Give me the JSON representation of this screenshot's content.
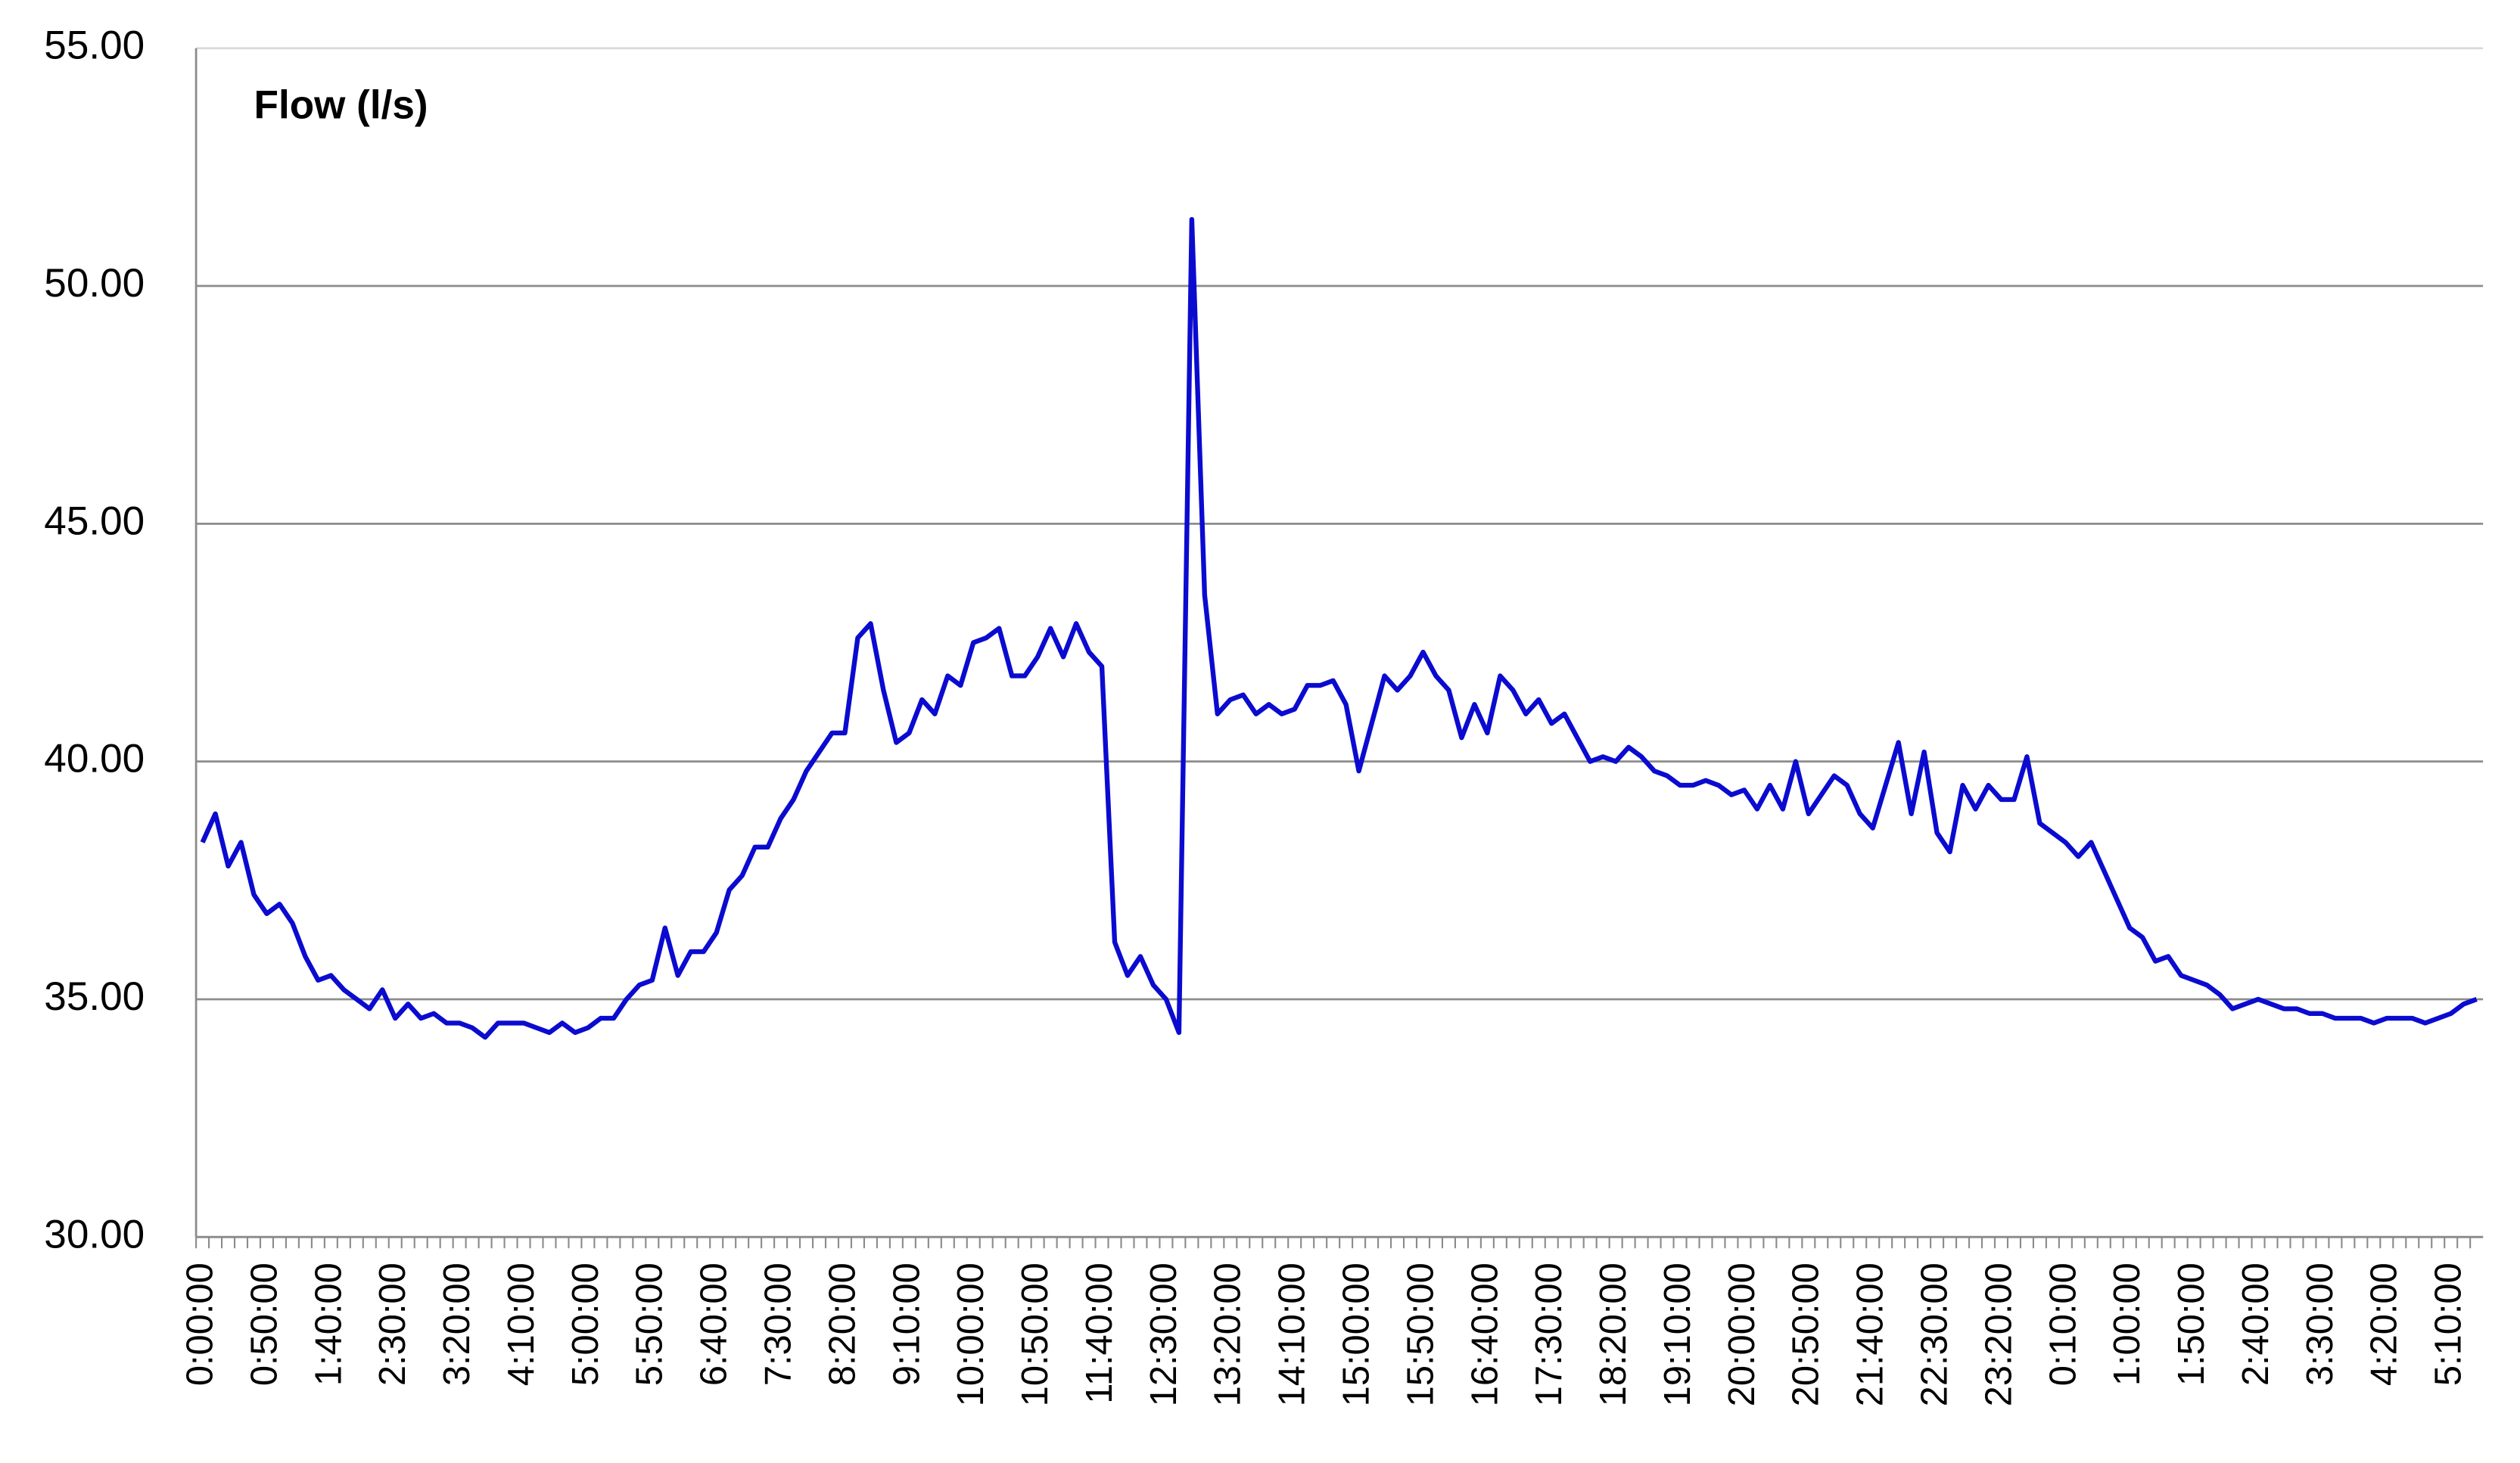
{
  "chart_data": {
    "type": "line",
    "categories": [
      "0:00:00",
      null,
      null,
      null,
      null,
      "0:50:00",
      null,
      null,
      null,
      null,
      "1:40:00",
      null,
      null,
      null,
      null,
      "2:30:00",
      null,
      null,
      null,
      null,
      "3:20:00",
      null,
      null,
      null,
      null,
      "4:10:00",
      null,
      null,
      null,
      null,
      "5:00:00",
      null,
      null,
      null,
      null,
      "5:50:00",
      null,
      null,
      null,
      null,
      "6:40:00",
      null,
      null,
      null,
      null,
      "7:30:00",
      null,
      null,
      null,
      null,
      "8:20:00",
      null,
      null,
      null,
      null,
      "9:10:00",
      null,
      null,
      null,
      null,
      "10:00:00",
      null,
      null,
      null,
      null,
      "10:50:00",
      null,
      null,
      null,
      null,
      "11:40:00",
      null,
      null,
      null,
      null,
      "12:30:00",
      null,
      null,
      null,
      null,
      "13:20:00",
      null,
      null,
      null,
      null,
      "14:10:00",
      null,
      null,
      null,
      null,
      "15:00:00",
      null,
      null,
      null,
      null,
      "15:50:00",
      null,
      null,
      null,
      null,
      "16:40:00",
      null,
      null,
      null,
      null,
      "17:30:00",
      null,
      null,
      null,
      null,
      "18:20:00",
      null,
      null,
      null,
      null,
      "19:10:00",
      null,
      null,
      null,
      null,
      "20:00:00",
      null,
      null,
      null,
      null,
      "20:50:00",
      null,
      null,
      null,
      null,
      "21:40:00",
      null,
      null,
      null,
      null,
      "22:30:00",
      null,
      null,
      null,
      null,
      "23:20:00",
      null,
      null,
      null,
      null,
      "0:10:00",
      null,
      null,
      null,
      null,
      "1:00:00",
      null,
      null,
      null,
      null,
      "1:50:00",
      null,
      null,
      null,
      null,
      "2:40:00",
      null,
      null,
      null,
      null,
      "3:30:00",
      null,
      null,
      null,
      null,
      "4:20:00",
      null,
      null,
      null,
      null,
      "5:10:00",
      null,
      null
    ],
    "series": [
      {
        "name": "Flow (l/s)",
        "color": "#0b0bd0",
        "values": [
          38.3,
          38.9,
          37.8,
          38.3,
          37.2,
          36.8,
          37.0,
          36.6,
          35.9,
          35.4,
          35.5,
          35.2,
          35.0,
          34.8,
          35.2,
          34.6,
          34.9,
          34.6,
          34.7,
          34.5,
          34.5,
          34.4,
          34.2,
          34.5,
          34.5,
          34.5,
          34.4,
          34.3,
          34.5,
          34.3,
          34.4,
          34.6,
          34.6,
          35.0,
          35.3,
          35.4,
          36.5,
          35.5,
          36.0,
          36.0,
          36.4,
          37.3,
          37.6,
          38.2,
          38.2,
          38.8,
          39.2,
          39.8,
          40.2,
          40.6,
          40.6,
          42.6,
          42.9,
          41.5,
          40.4,
          40.6,
          41.3,
          41.0,
          41.8,
          41.6,
          42.5,
          42.6,
          42.8,
          41.8,
          41.8,
          42.2,
          42.8,
          42.2,
          42.9,
          42.3,
          42.0,
          36.2,
          35.5,
          35.9,
          35.3,
          35.0,
          34.3,
          51.4,
          43.5,
          41.0,
          41.3,
          41.4,
          41.0,
          41.2,
          41.0,
          41.1,
          41.6,
          41.6,
          41.7,
          41.2,
          39.8,
          40.8,
          41.8,
          41.5,
          41.8,
          42.3,
          41.8,
          41.5,
          40.5,
          41.2,
          40.6,
          41.8,
          41.5,
          41.0,
          41.3,
          40.8,
          41.0,
          40.5,
          40.0,
          40.1,
          40.0,
          40.3,
          40.1,
          39.8,
          39.7,
          39.5,
          39.5,
          39.6,
          39.5,
          39.3,
          39.4,
          39.0,
          39.5,
          39.0,
          40.0,
          38.9,
          39.3,
          39.7,
          39.5,
          38.9,
          38.6,
          39.5,
          40.4,
          38.9,
          40.2,
          38.5,
          38.1,
          39.5,
          39.0,
          39.5,
          39.2,
          39.2,
          40.1,
          38.7,
          38.5,
          38.3,
          38.0,
          38.3,
          37.7,
          37.1,
          36.5,
          36.3,
          35.8,
          35.9,
          35.5,
          35.4,
          35.3,
          35.1,
          34.8,
          34.9,
          35.0,
          34.9,
          34.8,
          34.8,
          34.7,
          34.7,
          34.6,
          34.6,
          34.6,
          34.5,
          34.6,
          34.6,
          34.6,
          34.5,
          34.6,
          34.7,
          34.9,
          35.0
        ]
      }
    ],
    "ylim": [
      30,
      55
    ],
    "yticks": [
      {
        "value": 30,
        "label": "30.00"
      },
      {
        "value": 35,
        "label": "35.00"
      },
      {
        "value": 40,
        "label": "40.00"
      },
      {
        "value": 45,
        "label": "45.00"
      },
      {
        "value": 50,
        "label": "50.00"
      },
      {
        "value": 55,
        "label": "55.00"
      }
    ],
    "grid": true
  }
}
